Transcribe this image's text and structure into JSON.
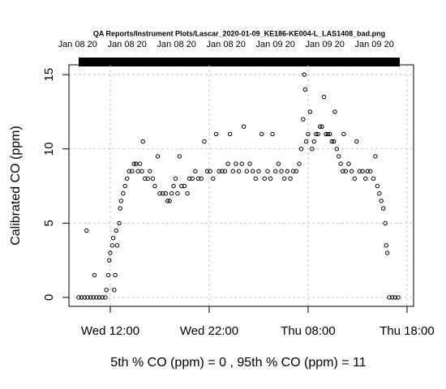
{
  "chart_data": {
    "type": "scatter",
    "title": "QA Reports/Instrument Plots/Lascar_2020-01-09_KE186-KE004-L_LAS1408_bad.png",
    "y_label": "Calibrated CO (ppm)",
    "x_label": "5th % CO (ppm) =  0 , 95th % CO (ppm)  =  11",
    "x": [
      8.8,
      9.1,
      9.4,
      9.7,
      10.0,
      10.3,
      10.6,
      10.9,
      11.2,
      11.5,
      9.6,
      10.4,
      11.6,
      11.8,
      11.9,
      12.0,
      12.2,
      12.3,
      12.4,
      12.5,
      12.6,
      12.7,
      12.9,
      13.0,
      13.1,
      13.3,
      13.5,
      13.7,
      13.9,
      14.2,
      14.4,
      14.6,
      14.8,
      15.0,
      15.2,
      15.3,
      15.5,
      15.8,
      16.0,
      16.3,
      16.5,
      16.8,
      17.0,
      17.3,
      17.6,
      17.8,
      18.0,
      18.2,
      18.4,
      18.6,
      18.8,
      19.0,
      19.2,
      19.5,
      19.8,
      20.0,
      20.3,
      20.6,
      20.9,
      21.2,
      21.5,
      21.8,
      22.1,
      22.4,
      22.7,
      23.0,
      23.3,
      23.6,
      23.9,
      24.1,
      24.4,
      24.7,
      25.0,
      25.3,
      25.5,
      25.8,
      26.1,
      26.4,
      26.7,
      27.0,
      27.3,
      27.6,
      27.9,
      28.2,
      28.4,
      28.7,
      29.0,
      29.3,
      29.6,
      29.9,
      30.2,
      30.5,
      30.8,
      31.1,
      31.3,
      31.5,
      31.6,
      31.7,
      31.8,
      32.0,
      32.2,
      32.4,
      32.6,
      32.8,
      33.0,
      33.2,
      33.4,
      33.6,
      33.8,
      34.0,
      34.2,
      34.4,
      34.6,
      34.7,
      34.9,
      35.1,
      35.3,
      35.5,
      35.6,
      35.8,
      36.1,
      36.4,
      36.7,
      36.9,
      37.2,
      37.5,
      37.8,
      38.0,
      38.3,
      38.6,
      38.8,
      39.0,
      39.2,
      39.4,
      39.6,
      39.8,
      39.9,
      40.0,
      40.2,
      40.5,
      40.8,
      41.1
    ],
    "values": [
      0,
      0,
      0,
      0,
      0,
      0,
      0,
      0,
      0,
      0,
      4.5,
      1.5,
      0.5,
      1.5,
      2.5,
      3,
      3.5,
      4,
      0.5,
      1.5,
      4.5,
      3.5,
      5,
      6,
      6.5,
      7,
      7.5,
      8,
      8.5,
      8.5,
      9,
      9,
      8.5,
      9,
      8.5,
      10.5,
      8,
      8,
      8.5,
      8,
      7.5,
      9.5,
      7,
      7,
      7,
      6.5,
      6.5,
      7,
      7.5,
      8,
      7,
      9.5,
      7.5,
      7.5,
      7,
      8,
      8,
      8.5,
      8,
      8,
      10.5,
      8.5,
      8.5,
      8,
      11,
      8.5,
      8.5,
      8.5,
      9,
      11,
      8.5,
      9,
      8.5,
      9,
      11.5,
      8.5,
      9,
      8.5,
      8,
      8.5,
      11,
      8,
      8.5,
      8,
      11,
      8.5,
      9,
      8.5,
      8,
      8.5,
      8,
      8.5,
      8.5,
      9,
      10,
      12,
      15,
      14,
      10.5,
      11,
      12.5,
      10,
      10.5,
      11,
      11,
      11.5,
      11.5,
      13.5,
      11,
      11,
      11,
      10.5,
      10.5,
      12.5,
      10,
      9.5,
      9,
      8.5,
      11,
      8.5,
      9,
      8.5,
      8,
      10.5,
      8.5,
      8.5,
      8,
      8.5,
      8.5,
      8,
      9.5,
      7.5,
      7,
      6.5,
      6,
      5,
      3.5,
      3,
      0,
      0,
      0,
      0
    ],
    "color": "#000000",
    "xlim": [
      7.82,
      42.66
    ],
    "ylim": [
      -0.6,
      15.66
    ],
    "xticks": [
      {
        "value": 12,
        "label": "Wed 12:00"
      },
      {
        "value": 22,
        "label": "Wed 22:00"
      },
      {
        "value": 32,
        "label": "Thu 08:00"
      },
      {
        "value": 42,
        "label": "Thu 18:00"
      }
    ],
    "yticks": [
      0,
      5,
      10,
      15
    ],
    "x2ticks": [
      {
        "value": 8.7,
        "label": "Jan 08 20"
      },
      {
        "value": 13.7,
        "label": "Jan 08 20"
      },
      {
        "value": 18.7,
        "label": "Jan 08 20"
      },
      {
        "value": 23.7,
        "label": "Jan 08 20"
      },
      {
        "value": 28.7,
        "label": "Jan 09 20"
      },
      {
        "value": 33.7,
        "label": "Jan 09 20"
      },
      {
        "value": 38.7,
        "label": "Jan 09 20"
      }
    ],
    "grid": true
  }
}
